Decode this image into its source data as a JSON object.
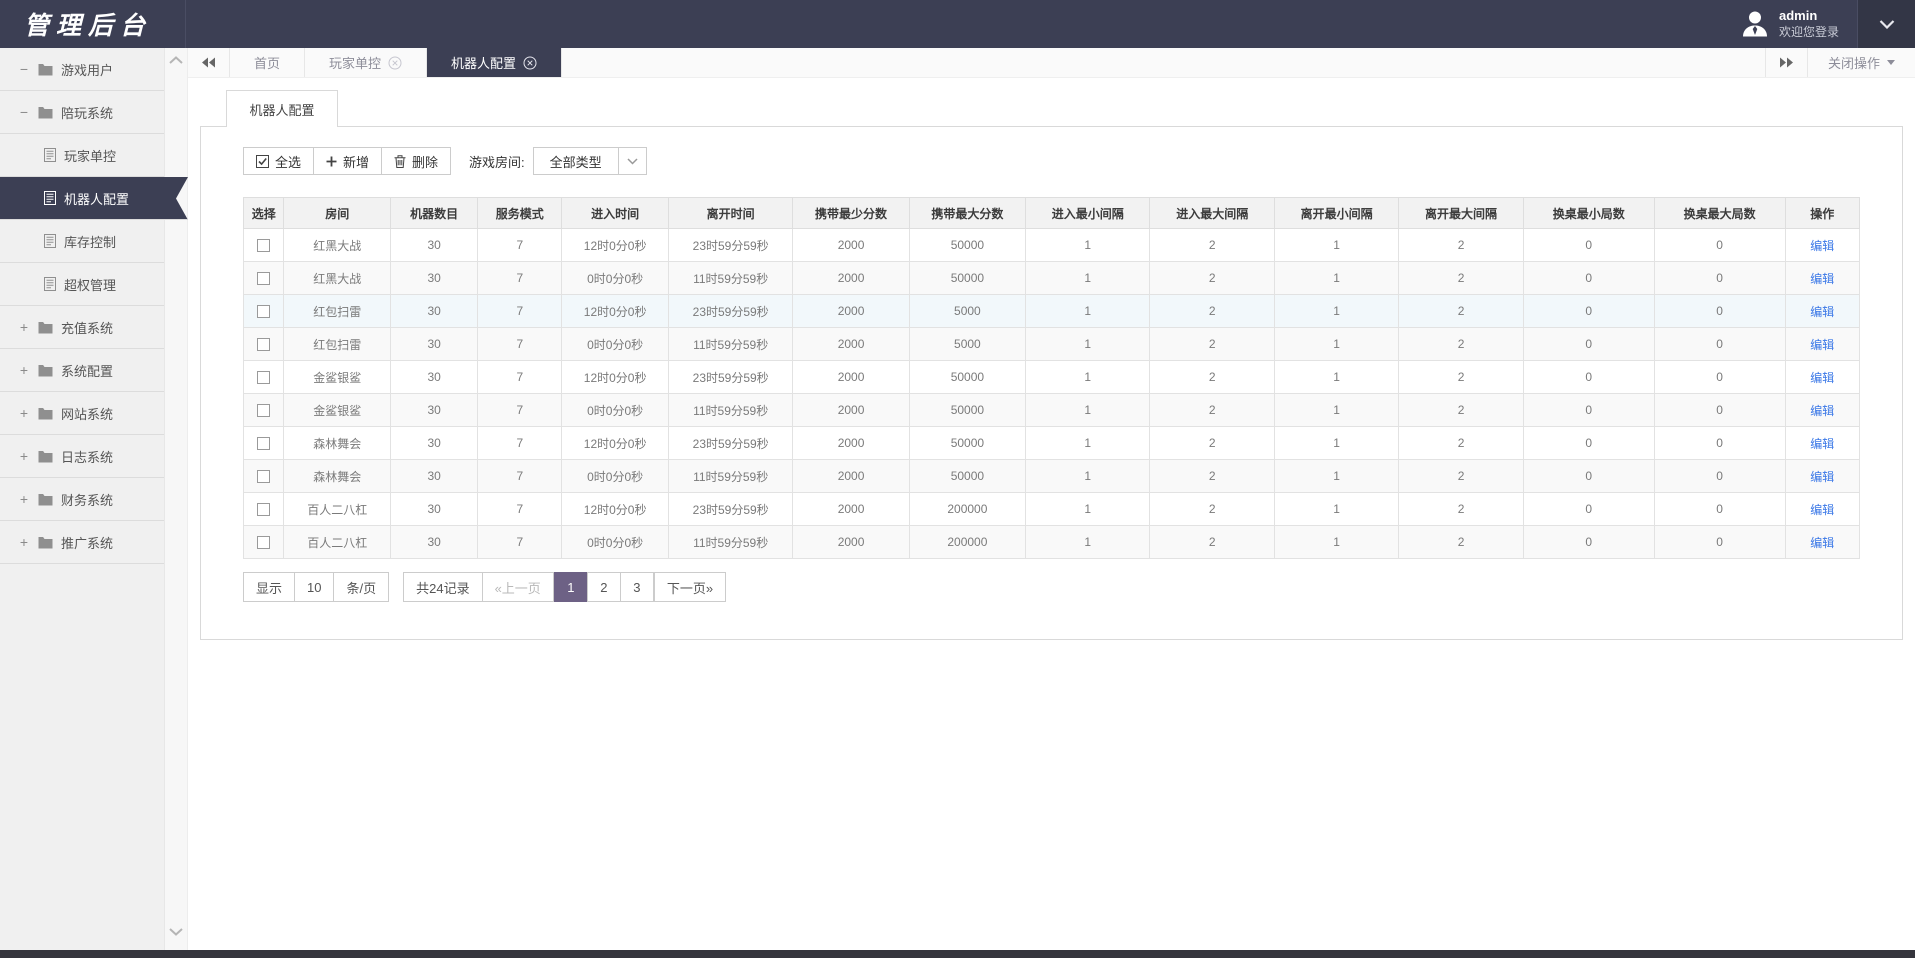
{
  "colors": {
    "topbar_bg": "#3c3f54",
    "active_tab_bg": "#3c3f54",
    "active_page_bg": "#6d6185",
    "link_blue": "#3b78e7",
    "row_highlight": "#f2f8fb"
  },
  "topbar": {
    "logo": "管理后台",
    "user": {
      "name": "admin",
      "greeting": "欢迎您登录"
    }
  },
  "sidebar": {
    "items": [
      {
        "label": "游戏用户",
        "type": "folder",
        "expand": "-",
        "active": false
      },
      {
        "label": "陪玩系统",
        "type": "folder",
        "expand": "-",
        "active": false
      },
      {
        "label": "玩家单控",
        "type": "doc",
        "expand": "",
        "active": false
      },
      {
        "label": "机器人配置",
        "type": "doc",
        "expand": "",
        "active": true
      },
      {
        "label": "库存控制",
        "type": "doc",
        "expand": "",
        "active": false
      },
      {
        "label": "超权管理",
        "type": "doc",
        "expand": "",
        "active": false
      },
      {
        "label": "充值系统",
        "type": "folder",
        "expand": "+",
        "active": false
      },
      {
        "label": "系统配置",
        "type": "folder",
        "expand": "+",
        "active": false
      },
      {
        "label": "网站系统",
        "type": "folder",
        "expand": "+",
        "active": false
      },
      {
        "label": "日志系统",
        "type": "folder",
        "expand": "+",
        "active": false
      },
      {
        "label": "财务系统",
        "type": "folder",
        "expand": "+",
        "active": false
      },
      {
        "label": "推广系统",
        "type": "folder",
        "expand": "+",
        "active": false
      }
    ]
  },
  "tabbar": {
    "tabs": [
      {
        "label": "首页",
        "closable": false,
        "active": false
      },
      {
        "label": "玩家单控",
        "closable": true,
        "active": false
      },
      {
        "label": "机器人配置",
        "closable": true,
        "active": true
      }
    ],
    "close_menu": "关闭操作"
  },
  "panel": {
    "tab_label": "机器人配置",
    "toolbar": {
      "select_all": "全选",
      "add": "新增",
      "delete": "删除",
      "room_label": "游戏房间:",
      "room_value": "全部类型"
    },
    "table": {
      "headers": [
        "选择",
        "房间",
        "机器数目",
        "服务模式",
        "进入时间",
        "离开时间",
        "携带最少分数",
        "携带最大分数",
        "进入最小间隔",
        "进入最大间隔",
        "离开最小间隔",
        "离开最大间隔",
        "换桌最小局数",
        "换桌最大局数",
        "操作"
      ],
      "edit_label": "编辑",
      "highlighted_row": 2,
      "rows": [
        [
          "红黑大战",
          "30",
          "7",
          "12时0分0秒",
          "23时59分59秒",
          "2000",
          "50000",
          "1",
          "2",
          "1",
          "2",
          "0",
          "0"
        ],
        [
          "红黑大战",
          "30",
          "7",
          "0时0分0秒",
          "11时59分59秒",
          "2000",
          "50000",
          "1",
          "2",
          "1",
          "2",
          "0",
          "0"
        ],
        [
          "红包扫雷",
          "30",
          "7",
          "12时0分0秒",
          "23时59分59秒",
          "2000",
          "5000",
          "1",
          "2",
          "1",
          "2",
          "0",
          "0"
        ],
        [
          "红包扫雷",
          "30",
          "7",
          "0时0分0秒",
          "11时59分59秒",
          "2000",
          "5000",
          "1",
          "2",
          "1",
          "2",
          "0",
          "0"
        ],
        [
          "金鲨银鲨",
          "30",
          "7",
          "12时0分0秒",
          "23时59分59秒",
          "2000",
          "50000",
          "1",
          "2",
          "1",
          "2",
          "0",
          "0"
        ],
        [
          "金鲨银鲨",
          "30",
          "7",
          "0时0分0秒",
          "11时59分59秒",
          "2000",
          "50000",
          "1",
          "2",
          "1",
          "2",
          "0",
          "0"
        ],
        [
          "森林舞会",
          "30",
          "7",
          "12时0分0秒",
          "23时59分59秒",
          "2000",
          "50000",
          "1",
          "2",
          "1",
          "2",
          "0",
          "0"
        ],
        [
          "森林舞会",
          "30",
          "7",
          "0时0分0秒",
          "11时59分59秒",
          "2000",
          "50000",
          "1",
          "2",
          "1",
          "2",
          "0",
          "0"
        ],
        [
          "百人二八杠",
          "30",
          "7",
          "12时0分0秒",
          "23时59分59秒",
          "2000",
          "200000",
          "1",
          "2",
          "1",
          "2",
          "0",
          "0"
        ],
        [
          "百人二八杠",
          "30",
          "7",
          "0时0分0秒",
          "11时59分59秒",
          "2000",
          "200000",
          "1",
          "2",
          "1",
          "2",
          "0",
          "0"
        ]
      ]
    },
    "pagination": {
      "show_label": "显示",
      "page_size": "10",
      "per_page_label": "条/页",
      "total_label": "共24记录",
      "prev_label": "«上一页",
      "pages": [
        "1",
        "2",
        "3"
      ],
      "active_page": "1",
      "next_label": "下一页»"
    }
  }
}
